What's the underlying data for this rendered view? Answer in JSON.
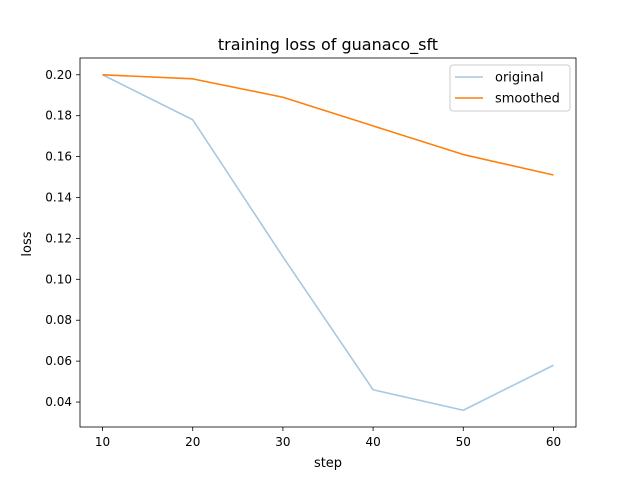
{
  "chart_data": {
    "type": "line",
    "title": "training loss of guanaco_sft",
    "xlabel": "step",
    "ylabel": "loss",
    "x": [
      10,
      20,
      30,
      40,
      50,
      60
    ],
    "series": [
      {
        "name": "original",
        "values": [
          0.2,
          0.178,
          0.111,
          0.046,
          0.036,
          0.058
        ],
        "color": "#a6c8e2"
      },
      {
        "name": "smoothed",
        "values": [
          0.2,
          0.198,
          0.189,
          0.175,
          0.161,
          0.151
        ],
        "color": "#ff7f0e"
      }
    ],
    "xlim": [
      7.5,
      62.5
    ],
    "ylim": [
      0.0278,
      0.2082
    ],
    "xticks": [
      10,
      20,
      30,
      40,
      50,
      60
    ],
    "yticks": [
      0.04,
      0.06,
      0.08,
      0.1,
      0.12,
      0.14,
      0.16,
      0.18,
      0.2
    ],
    "ytick_labels": [
      "0.04",
      "0.06",
      "0.08",
      "0.10",
      "0.12",
      "0.14",
      "0.16",
      "0.18",
      "0.20"
    ],
    "grid": false,
    "legend_position": "top-right"
  }
}
